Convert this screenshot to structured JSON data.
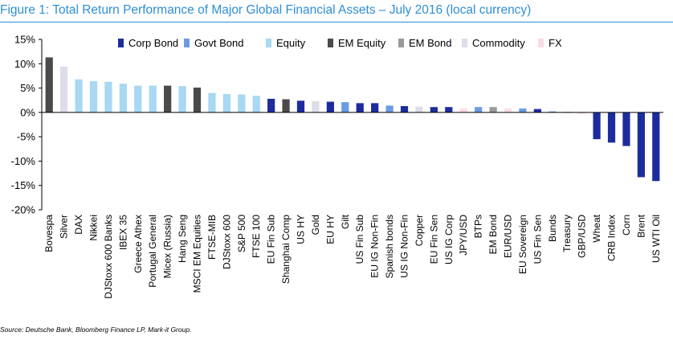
{
  "figure": {
    "title": "Figure 1: Total Return Performance of Major Global Financial Assets – July 2016 (local currency)",
    "source": "Source: Deutsche Bank, Bloomberg Finance LP, Mark-it Group."
  },
  "chart_data": {
    "type": "bar",
    "title": "Figure 1: Total Return Performance of Major Global Financial Assets – July 2016 (local currency)",
    "xlabel": "",
    "ylabel": "",
    "ylim": [
      -20,
      15
    ],
    "yticks": [
      15,
      10,
      5,
      0,
      -5,
      -10,
      -15,
      -20
    ],
    "ytick_labels": [
      "15%",
      "10%",
      "5%",
      "0%",
      "-5%",
      "-10%",
      "-15%",
      "-20%"
    ],
    "legend_position": "top",
    "grid": false,
    "legend": [
      {
        "name": "Corp Bond",
        "color": "#1c2c9c"
      },
      {
        "name": "Govt Bond",
        "color": "#6a9be3"
      },
      {
        "name": "Equity",
        "color": "#a8d8f2"
      },
      {
        "name": "EM Equity",
        "color": "#4a4a4a"
      },
      {
        "name": "EM Bond",
        "color": "#9a9a9a"
      },
      {
        "name": "Commodity",
        "color": "#dddde9"
      },
      {
        "name": "FX",
        "color": "#fbdbe5"
      }
    ],
    "categories": [
      "Bovespa",
      "Silver",
      "DAX",
      "Nikkei",
      "DJStoxx 600 Banks",
      "IBEX 35",
      "Greece Athex",
      "Portugal General",
      "Micex (Russia)",
      "Hang Seng",
      "MSCI EM Equities",
      "FTSE-MIB",
      "DJStoxx 600",
      "S&P 500",
      "FTSE 100",
      "EU Fin Sub",
      "Shanghai Comp",
      "US HY",
      "Gold",
      "EU HY",
      "Gilt",
      "US Fin Sub",
      "EU IG Non-Fin",
      "Spanish bonds",
      "US IG Non-Fin",
      "Copper",
      "EU Fin Sen",
      "US IG Corp",
      "JPY/USD",
      "BTPs",
      "EM Bond",
      "EUR/USD",
      "EU Sovereign",
      "US Fin Sen",
      "Bunds",
      "Treasury",
      "GBP/USD",
      "Wheat",
      "CRB Index",
      "Corn",
      "Brent",
      "US WTI Oil"
    ],
    "values": [
      11.3,
      9.4,
      6.8,
      6.4,
      6.3,
      5.9,
      5.5,
      5.5,
      5.5,
      5.4,
      5.1,
      4.0,
      3.8,
      3.7,
      3.4,
      2.8,
      2.7,
      2.4,
      2.3,
      2.2,
      2.1,
      1.9,
      1.9,
      1.4,
      1.3,
      1.2,
      1.1,
      1.1,
      0.8,
      1.1,
      1.1,
      0.8,
      0.8,
      0.7,
      0.2,
      0.1,
      -0.3,
      -5.5,
      -6.2,
      -6.9,
      -13.3,
      -14.1
    ],
    "groups": [
      "EM Equity",
      "Commodity",
      "Equity",
      "Equity",
      "Equity",
      "Equity",
      "Equity",
      "Equity",
      "EM Equity",
      "Equity",
      "EM Equity",
      "Equity",
      "Equity",
      "Equity",
      "Equity",
      "Corp Bond",
      "EM Equity",
      "Corp Bond",
      "Commodity",
      "Corp Bond",
      "Govt Bond",
      "Corp Bond",
      "Corp Bond",
      "Govt Bond",
      "Corp Bond",
      "Commodity",
      "Corp Bond",
      "Corp Bond",
      "FX",
      "Govt Bond",
      "EM Bond",
      "FX",
      "Govt Bond",
      "Corp Bond",
      "Govt Bond",
      "Govt Bond",
      "FX",
      "Corp Bond",
      "Corp Bond",
      "Corp Bond",
      "Corp Bond",
      "Corp Bond"
    ]
  }
}
